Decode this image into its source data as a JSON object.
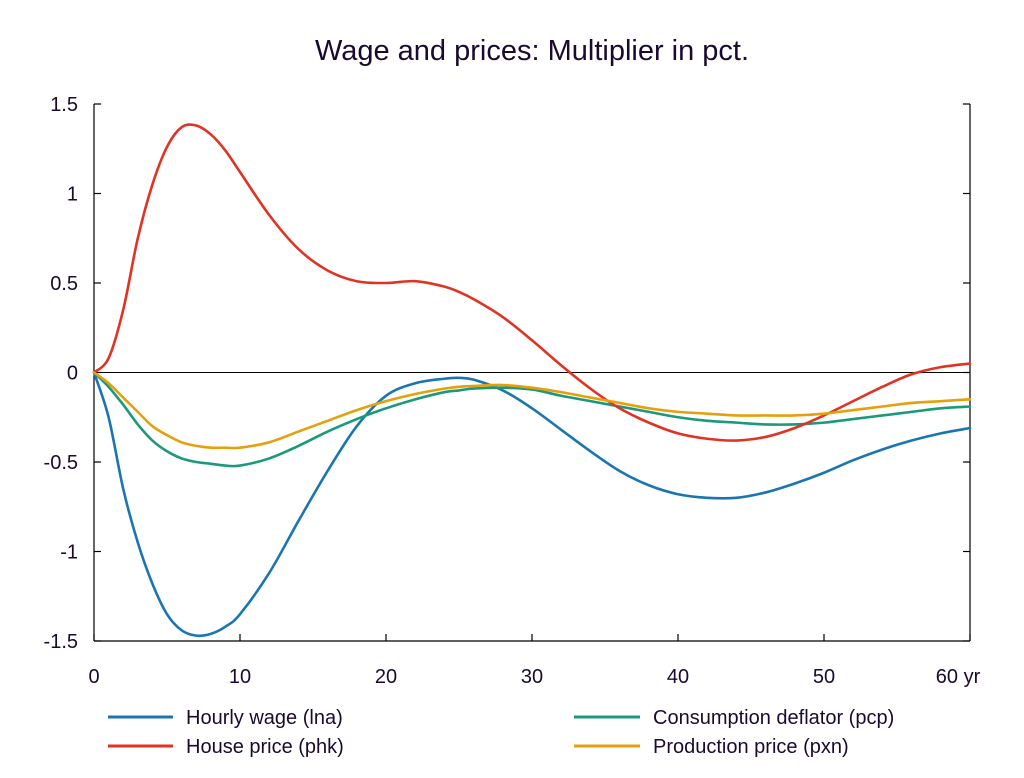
{
  "chart_data": {
    "type": "line",
    "title": "Wage and prices: Multiplier in pct.",
    "xlabel": "",
    "ylabel": "",
    "xlim": [
      0,
      60
    ],
    "ylim": [
      -1.5,
      1.5
    ],
    "x_ticks": [
      0,
      10,
      20,
      30,
      40,
      50,
      60
    ],
    "x_tick_labels": [
      "0",
      "10",
      "20",
      "30",
      "40",
      "50",
      "60 yr"
    ],
    "y_ticks": [
      1.5,
      1,
      0.5,
      0,
      -0.5,
      -1,
      -1.5
    ],
    "y_tick_labels": [
      "1.5",
      "1",
      "0.5",
      "0",
      "-0.5",
      "-1",
      "-1.5"
    ],
    "grid": false,
    "zero_line": true,
    "legend_position": "bottom",
    "colors": {
      "text": "#1a0a2e",
      "axis": "#000000"
    },
    "x": [
      0,
      1,
      2,
      3,
      4,
      5,
      6,
      7,
      8,
      9,
      10,
      12,
      14,
      16,
      18,
      20,
      22,
      24,
      25,
      26,
      28,
      30,
      32,
      34,
      36,
      38,
      40,
      42,
      44,
      46,
      48,
      50,
      52,
      54,
      56,
      58,
      60
    ],
    "series": [
      {
        "name": "Hourly wage (lna)",
        "color": "#1a75b0",
        "values": [
          0,
          -0.25,
          -0.65,
          -0.95,
          -1.18,
          -1.35,
          -1.44,
          -1.47,
          -1.46,
          -1.42,
          -1.35,
          -1.12,
          -0.83,
          -0.55,
          -0.3,
          -0.13,
          -0.06,
          -0.035,
          -0.03,
          -0.04,
          -0.1,
          -0.2,
          -0.32,
          -0.44,
          -0.55,
          -0.63,
          -0.68,
          -0.7,
          -0.7,
          -0.67,
          -0.62,
          -0.56,
          -0.49,
          -0.43,
          -0.38,
          -0.34,
          -0.31
        ]
      },
      {
        "name": "Consumption deflator (pcp)",
        "color": "#1a9a7a",
        "values": [
          0,
          -0.08,
          -0.18,
          -0.29,
          -0.38,
          -0.44,
          -0.48,
          -0.5,
          -0.51,
          -0.52,
          -0.52,
          -0.48,
          -0.41,
          -0.33,
          -0.26,
          -0.2,
          -0.15,
          -0.11,
          -0.1,
          -0.09,
          -0.085,
          -0.095,
          -0.13,
          -0.16,
          -0.19,
          -0.22,
          -0.25,
          -0.27,
          -0.28,
          -0.29,
          -0.29,
          -0.28,
          -0.26,
          -0.24,
          -0.22,
          -0.2,
          -0.19
        ]
      },
      {
        "name": "House price (phk)",
        "color": "#e03323",
        "values": [
          0,
          0.08,
          0.35,
          0.75,
          1.05,
          1.26,
          1.37,
          1.38,
          1.33,
          1.24,
          1.12,
          0.88,
          0.69,
          0.57,
          0.51,
          0.5,
          0.51,
          0.48,
          0.45,
          0.41,
          0.31,
          0.18,
          0.04,
          -0.09,
          -0.2,
          -0.28,
          -0.34,
          -0.37,
          -0.38,
          -0.36,
          -0.31,
          -0.24,
          -0.16,
          -0.08,
          -0.01,
          0.03,
          0.05
        ]
      },
      {
        "name": "Production price (pxn)",
        "color": "#e5a00d",
        "values": [
          0,
          -0.06,
          -0.14,
          -0.22,
          -0.3,
          -0.35,
          -0.39,
          -0.41,
          -0.42,
          -0.42,
          -0.42,
          -0.39,
          -0.33,
          -0.27,
          -0.21,
          -0.16,
          -0.12,
          -0.09,
          -0.08,
          -0.075,
          -0.07,
          -0.085,
          -0.11,
          -0.14,
          -0.17,
          -0.2,
          -0.22,
          -0.23,
          -0.24,
          -0.24,
          -0.24,
          -0.23,
          -0.21,
          -0.19,
          -0.17,
          -0.16,
          -0.15
        ]
      }
    ],
    "legend": [
      {
        "label": "Hourly wage (lna)",
        "color": "#1a75b0"
      },
      {
        "label": "Consumption deflator (pcp)",
        "color": "#1a9a7a"
      },
      {
        "label": "House price (phk)",
        "color": "#e03323"
      },
      {
        "label": "Production price (pxn)",
        "color": "#e5a00d"
      }
    ]
  }
}
